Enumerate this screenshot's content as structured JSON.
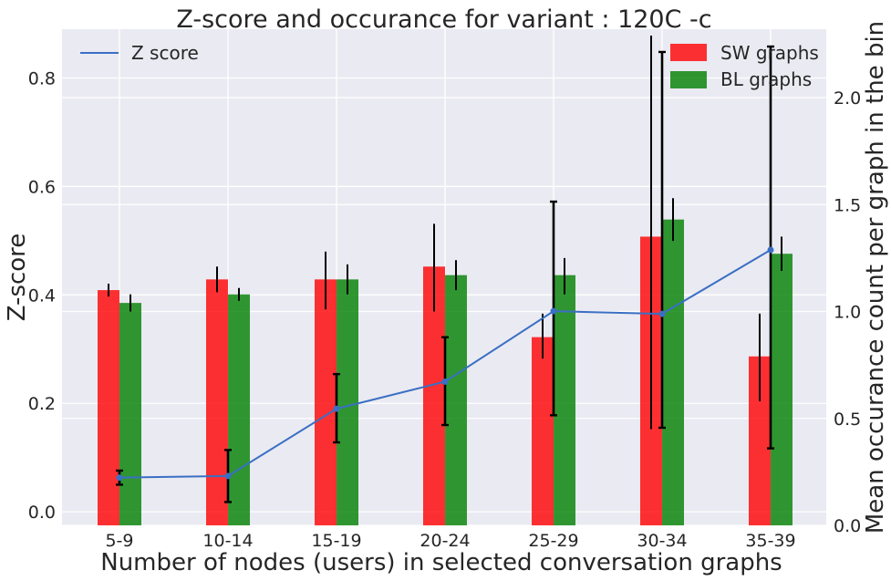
{
  "chart_data": {
    "type": "bar",
    "title": "Z-score and occurance for variant : 120C -c",
    "xlabel": "Number of nodes (users) in selected conversation graphs",
    "ylabel": "Z-score",
    "y2label": "Mean occurance count per graph in the bin",
    "categories": [
      "5-9",
      "10-14",
      "15-19",
      "20-24",
      "25-29",
      "30-34",
      "35-39"
    ],
    "ylim": [
      -0.025,
      0.89
    ],
    "y2lim": [
      0,
      2.32
    ],
    "yticks": [
      0.0,
      0.2,
      0.4,
      0.6,
      0.8
    ],
    "ytick_labels": [
      "0.0",
      "0.2",
      "0.4",
      "0.6",
      "0.8"
    ],
    "y2ticks": [
      0.0,
      0.5,
      1.0,
      1.5,
      2.0
    ],
    "y2tick_labels": [
      "0.0",
      "0.5",
      "1.0",
      "1.5",
      "2.0"
    ],
    "bar_series": [
      {
        "name": "SW graphs",
        "color": "#ff0000",
        "axis": "right",
        "values": [
          1.1,
          1.15,
          1.15,
          1.21,
          0.88,
          1.35,
          0.79
        ],
        "err_low": [
          1.07,
          1.09,
          1.01,
          1.0,
          0.78,
          0.45,
          0.58
        ],
        "err_high": [
          1.13,
          1.21,
          1.28,
          1.41,
          0.99,
          2.29,
          0.99
        ]
      },
      {
        "name": "BL graphs",
        "color": "#008000",
        "axis": "right",
        "values": [
          1.04,
          1.08,
          1.15,
          1.17,
          1.17,
          1.43,
          1.27
        ],
        "err_low": [
          1.0,
          1.05,
          1.08,
          1.1,
          1.08,
          1.33,
          1.19
        ],
        "err_high": [
          1.08,
          1.11,
          1.22,
          1.24,
          1.25,
          1.53,
          1.35
        ]
      }
    ],
    "line_series": {
      "name": "Z score",
      "color": "#3a6fc4",
      "axis": "left",
      "values": [
        0.063,
        0.066,
        0.19,
        0.24,
        0.37,
        0.365,
        0.483
      ],
      "err_low": [
        0.05,
        0.018,
        0.128,
        0.16,
        0.178,
        0.155,
        0.117
      ],
      "err_high": [
        0.076,
        0.114,
        0.254,
        0.322,
        0.572,
        0.848,
        0.858
      ]
    },
    "legend_left": "top-left",
    "legend_right": "top-right",
    "grid": true
  }
}
